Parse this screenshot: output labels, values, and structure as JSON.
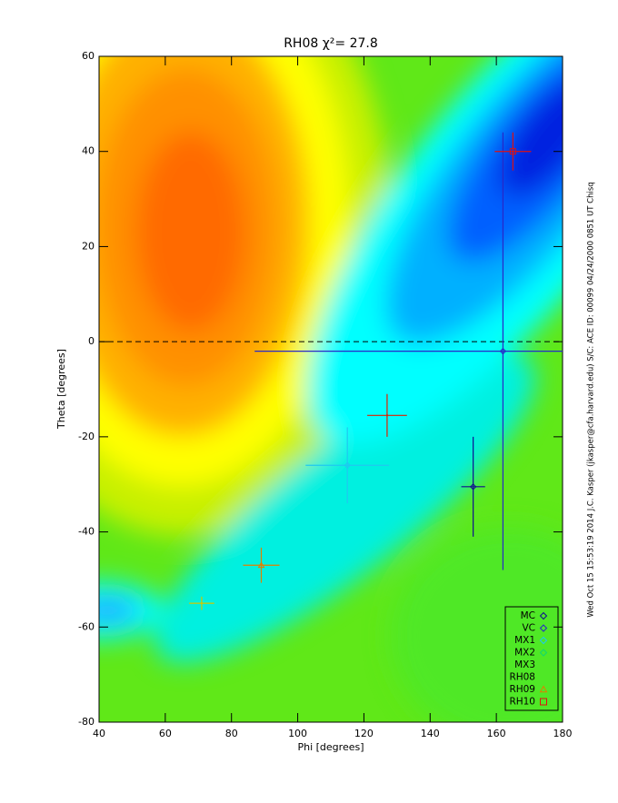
{
  "chart_data": {
    "type": "errorbar",
    "title": "RH08 χ²= 27.8",
    "x_label": "Phi [degrees]",
    "y_label": "Theta [degrees]",
    "side_note": "Wed Oct 15 15:53:19 2014   J.C. Kasper (jkasper@cfa.harvard.edu)   S/C: ACE ID: 00099 04/24/2000   0851 UT Chisq",
    "xlim": [
      40,
      180
    ],
    "xticks": [
      40,
      60,
      80,
      100,
      120,
      140,
      160,
      180
    ],
    "ylim": [
      -80,
      60
    ],
    "yticks": [
      -80,
      -60,
      -40,
      -20,
      0,
      20,
      40,
      60
    ],
    "reference_line_y": 0,
    "series": [
      {
        "name": "MC",
        "color": "#101090",
        "marker": "diamond",
        "x": [
          153
        ],
        "y": [
          -30.5
        ],
        "xerr": [
          3.6
        ],
        "yerr": [
          10.5
        ]
      },
      {
        "name": "VC",
        "color": "#2828c8",
        "marker": "diamond",
        "x": [
          162
        ],
        "y": [
          -2
        ],
        "xerr": [
          75
        ],
        "yerr": [
          46
        ]
      },
      {
        "name": "MX1",
        "color": "#20c8f0",
        "marker": "diamond",
        "x": [
          115
        ],
        "y": [
          -26
        ],
        "xerr": [
          12.6
        ],
        "yerr": [
          8
        ]
      },
      {
        "name": "MX2",
        "color": "#10d870",
        "marker": "diamond",
        "x": [],
        "y": [],
        "xerr": [],
        "yerr": []
      },
      {
        "name": "MX3",
        "color": "#d0c800",
        "marker": "none",
        "x": [
          71
        ],
        "y": [
          -55
        ],
        "xerr": [
          3.8
        ],
        "yerr": [
          1.4
        ]
      },
      {
        "name": "RH08",
        "color": "#e02000",
        "marker": "none",
        "x": [
          127
        ],
        "y": [
          -15.5
        ],
        "xerr": [
          6
        ],
        "yerr": [
          4.5
        ]
      },
      {
        "name": "RH09",
        "color": "#e08000",
        "marker": "triangle",
        "x": [
          89
        ],
        "y": [
          -47
        ],
        "xerr": [
          5.5
        ],
        "yerr": [
          3.7
        ]
      },
      {
        "name": "RH10",
        "color": "#e01010",
        "marker": "square",
        "x": [
          165
        ],
        "y": [
          40
        ],
        "xerr": [
          5.5
        ],
        "yerr": [
          4
        ]
      }
    ]
  }
}
